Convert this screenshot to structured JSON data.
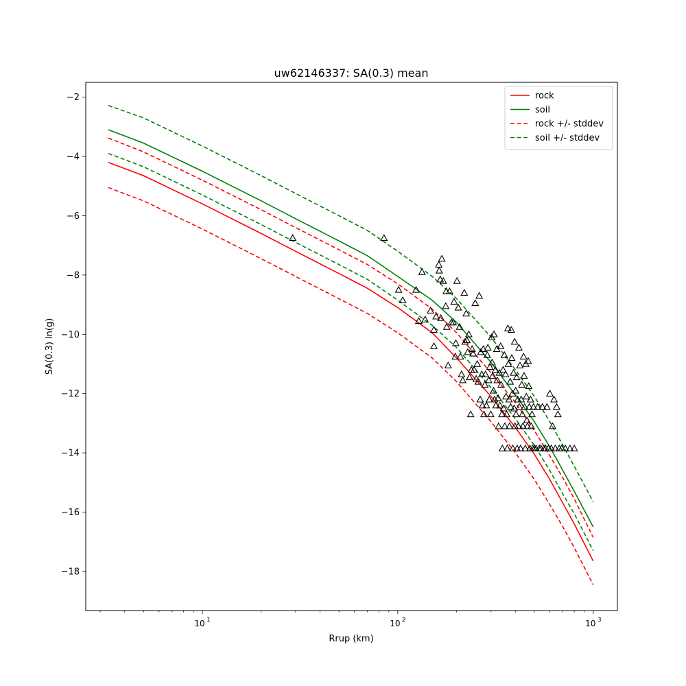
{
  "chart_data": {
    "type": "line",
    "title": "uw62146337: SA(0.3) mean",
    "xlabel": "Rrup (km)",
    "ylabel": "SA(0.3) ln(g)",
    "x_scale": "log",
    "xlim": [
      2.53,
      1330
    ],
    "ylim": [
      -19.32,
      -1.5
    ],
    "grid": false,
    "legend_position": "top-right",
    "xticks": [
      {
        "value": 10,
        "base": "10",
        "exp": "1"
      },
      {
        "value": 100,
        "base": "10",
        "exp": "2"
      },
      {
        "value": 1000,
        "base": "10",
        "exp": "3"
      }
    ],
    "yticks": [
      {
        "value": -2,
        "label": "−2"
      },
      {
        "value": -4,
        "label": "−4"
      },
      {
        "value": -6,
        "label": "−6"
      },
      {
        "value": -8,
        "label": "−8"
      },
      {
        "value": -10,
        "label": "−10"
      },
      {
        "value": -12,
        "label": "−12"
      },
      {
        "value": -14,
        "label": "−14"
      },
      {
        "value": -16,
        "label": "−16"
      },
      {
        "value": -18,
        "label": "−18"
      }
    ],
    "series": [
      {
        "name": "rock",
        "color": "#ff0000",
        "style": "solid",
        "x": [
          3.3,
          5,
          10,
          20,
          30,
          50,
          70,
          100,
          150,
          200,
          300,
          400,
          500,
          600,
          700,
          800,
          1000
        ],
        "y": [
          -4.2,
          -4.65,
          -5.6,
          -6.6,
          -7.2,
          -7.95,
          -8.45,
          -9.1,
          -9.95,
          -10.8,
          -12.1,
          -13.15,
          -14.05,
          -14.9,
          -15.7,
          -16.4,
          -17.65
        ]
      },
      {
        "name": "soil",
        "color": "#008000",
        "style": "solid",
        "x": [
          3.3,
          5,
          10,
          20,
          30,
          50,
          70,
          100,
          150,
          200,
          300,
          400,
          500,
          600,
          700,
          800,
          1000
        ],
        "y": [
          -3.1,
          -3.55,
          -4.5,
          -5.5,
          -6.1,
          -6.85,
          -7.35,
          -8.05,
          -8.85,
          -9.6,
          -10.95,
          -12.05,
          -12.95,
          -13.8,
          -14.6,
          -15.3,
          -16.5
        ]
      },
      {
        "name": "rock +/- stddev",
        "color": "#ff0000",
        "style": "dashed",
        "x": [
          3.3,
          5,
          10,
          20,
          30,
          50,
          70,
          100,
          150,
          200,
          300,
          400,
          500,
          600,
          700,
          800,
          1000
        ],
        "y": [
          -3.38,
          -3.85,
          -4.8,
          -5.8,
          -6.4,
          -7.15,
          -7.65,
          -8.3,
          -9.15,
          -9.95,
          -11.3,
          -12.3,
          -13.25,
          -14.1,
          -14.85,
          -15.55,
          -16.85
        ]
      },
      {
        "name": "",
        "color": "#ff0000",
        "style": "dashed",
        "x": [
          3.3,
          5,
          10,
          20,
          30,
          50,
          70,
          100,
          150,
          200,
          300,
          400,
          500,
          600,
          700,
          800,
          1000
        ],
        "y": [
          -5.05,
          -5.5,
          -6.45,
          -7.45,
          -8.05,
          -8.8,
          -9.3,
          -9.95,
          -10.8,
          -11.6,
          -12.95,
          -14.0,
          -14.9,
          -15.75,
          -16.5,
          -17.2,
          -18.45
        ]
      },
      {
        "name": "soil +/- stddev",
        "color": "#008000",
        "style": "dashed",
        "x": [
          3.3,
          5,
          10,
          20,
          30,
          50,
          70,
          100,
          150,
          200,
          300,
          400,
          500,
          600,
          700,
          800,
          1000
        ],
        "y": [
          -2.28,
          -2.7,
          -3.65,
          -4.65,
          -5.25,
          -6.0,
          -6.5,
          -7.2,
          -8.05,
          -8.8,
          -10.1,
          -11.2,
          -12.1,
          -12.95,
          -13.75,
          -14.45,
          -15.65
        ]
      },
      {
        "name": "",
        "color": "#008000",
        "style": "dashed",
        "x": [
          3.3,
          5,
          10,
          20,
          30,
          50,
          70,
          100,
          150,
          200,
          300,
          400,
          500,
          600,
          700,
          800,
          1000
        ],
        "y": [
          -3.9,
          -4.35,
          -5.3,
          -6.3,
          -6.9,
          -7.65,
          -8.15,
          -8.85,
          -9.7,
          -10.45,
          -11.8,
          -12.85,
          -13.75,
          -14.6,
          -15.4,
          -16.05,
          -17.3
        ]
      }
    ],
    "observations": {
      "marker": "triangle",
      "color": "#000000",
      "points": [
        [
          29,
          -6.75
        ],
        [
          85,
          -6.75
        ],
        [
          101,
          -8.5
        ],
        [
          106,
          -8.85
        ],
        [
          124,
          -8.5
        ],
        [
          133,
          -7.9
        ],
        [
          128,
          -9.55
        ],
        [
          138,
          -9.5
        ],
        [
          147,
          -9.2
        ],
        [
          153,
          -9.85
        ],
        [
          153,
          -10.4
        ],
        [
          157,
          -9.4
        ],
        [
          162,
          -7.65
        ],
        [
          163,
          -7.85
        ],
        [
          165,
          -8.15
        ],
        [
          166,
          -9.45
        ],
        [
          168,
          -7.45
        ],
        [
          171,
          -8.2
        ],
        [
          176,
          -9.05
        ],
        [
          177,
          -8.55
        ],
        [
          178,
          -9.75
        ],
        [
          181,
          -11.05
        ],
        [
          184,
          -8.55
        ],
        [
          188,
          -9.6
        ],
        [
          192,
          -9.6
        ],
        [
          194,
          -8.9
        ],
        [
          197,
          -10.75
        ],
        [
          198,
          -10.3
        ],
        [
          201,
          -8.2
        ],
        [
          204,
          -9.1
        ],
        [
          207,
          -9.75
        ],
        [
          209,
          -10.75
        ],
        [
          212,
          -11.35
        ],
        [
          215,
          -11.55
        ],
        [
          219,
          -8.6
        ],
        [
          221,
          -10.25
        ],
        [
          224,
          -9.3
        ],
        [
          226,
          -10.2
        ],
        [
          228,
          -10.6
        ],
        [
          231,
          -10.0
        ],
        [
          233,
          -11.45
        ],
        [
          236,
          -12.7
        ],
        [
          238,
          -11.2
        ],
        [
          240,
          -10.5
        ],
        [
          243,
          -10.65
        ],
        [
          246,
          -11.2
        ],
        [
          249,
          -8.95
        ],
        [
          252,
          -11.5
        ],
        [
          255,
          -11.0
        ],
        [
          258,
          -11.6
        ],
        [
          261,
          -8.7
        ],
        [
          264,
          -12.2
        ],
        [
          266,
          -10.6
        ],
        [
          269,
          -11.35
        ],
        [
          271,
          -12.4
        ],
        [
          274,
          -10.5
        ],
        [
          276,
          -12.7
        ],
        [
          279,
          -11.7
        ],
        [
          281,
          -11.35
        ],
        [
          284,
          -12.4
        ],
        [
          287,
          -10.7
        ],
        [
          289,
          -10.45
        ],
        [
          292,
          -11.55
        ],
        [
          294,
          -12.2
        ],
        [
          296,
          -11.1
        ],
        [
          299,
          -12.7
        ],
        [
          302,
          -10.1
        ],
        [
          304,
          -10.95
        ],
        [
          306,
          -11.4
        ],
        [
          309,
          -11.9
        ],
        [
          311,
          -10.0
        ],
        [
          313,
          -12.2
        ],
        [
          316,
          -11.2
        ],
        [
          318,
          -12.4
        ],
        [
          321,
          -10.5
        ],
        [
          323,
          -11.55
        ],
        [
          326,
          -12.15
        ],
        [
          328,
          -13.1
        ],
        [
          331,
          -11.3
        ],
        [
          333,
          -12.4
        ],
        [
          336,
          -10.4
        ],
        [
          338,
          -11.7
        ],
        [
          341,
          -12.7
        ],
        [
          343,
          -13.85
        ],
        [
          346,
          -11.2
        ],
        [
          348,
          -12.5
        ],
        [
          351,
          -10.7
        ],
        [
          353,
          -13.1
        ],
        [
          356,
          -11.35
        ],
        [
          358,
          -12.1
        ],
        [
          361,
          -12.7
        ],
        [
          363,
          -13.85
        ],
        [
          366,
          -9.8
        ],
        [
          368,
          -11.0
        ],
        [
          371,
          -12.2
        ],
        [
          373,
          -13.1
        ],
        [
          376,
          -11.6
        ],
        [
          378,
          -12.45
        ],
        [
          381,
          -9.85
        ],
        [
          383,
          -10.8
        ],
        [
          386,
          -12.0
        ],
        [
          388,
          -13.85
        ],
        [
          391,
          -11.3
        ],
        [
          394,
          -12.5
        ],
        [
          396,
          -10.25
        ],
        [
          398,
          -13.1
        ],
        [
          401,
          -11.9
        ],
        [
          403,
          -12.7
        ],
        [
          406,
          -11.45
        ],
        [
          408,
          -13.85
        ],
        [
          411,
          -12.2
        ],
        [
          414,
          -13.1
        ],
        [
          417,
          -10.45
        ],
        [
          419,
          -12.45
        ],
        [
          422,
          -11.05
        ],
        [
          425,
          -13.85
        ],
        [
          428,
          -12.2
        ],
        [
          431,
          -11.7
        ],
        [
          434,
          -12.7
        ],
        [
          437,
          -13.1
        ],
        [
          440,
          -10.75
        ],
        [
          443,
          -11.4
        ],
        [
          446,
          -12.45
        ],
        [
          449,
          -13.85
        ],
        [
          452,
          -11.0
        ],
        [
          455,
          -12.1
        ],
        [
          458,
          -12.9
        ],
        [
          461,
          -13.1
        ],
        [
          465,
          -10.9
        ],
        [
          468,
          -11.75
        ],
        [
          471,
          -12.45
        ],
        [
          474,
          -13.85
        ],
        [
          478,
          -12.2
        ],
        [
          482,
          -13.1
        ],
        [
          486,
          -12.7
        ],
        [
          490,
          -13.85
        ],
        [
          495,
          -12.45
        ],
        [
          500,
          -13.85
        ],
        [
          510,
          -13.85
        ],
        [
          520,
          -12.45
        ],
        [
          530,
          -13.85
        ],
        [
          540,
          -13.85
        ],
        [
          550,
          -12.45
        ],
        [
          560,
          -13.85
        ],
        [
          570,
          -13.85
        ],
        [
          580,
          -12.45
        ],
        [
          590,
          -13.85
        ],
        [
          600,
          -12.0
        ],
        [
          610,
          -13.85
        ],
        [
          620,
          -13.1
        ],
        [
          630,
          -12.2
        ],
        [
          640,
          -13.85
        ],
        [
          650,
          -12.45
        ],
        [
          660,
          -12.7
        ],
        [
          670,
          -13.85
        ],
        [
          690,
          -13.85
        ],
        [
          720,
          -13.85
        ],
        [
          760,
          -13.85
        ],
        [
          800,
          -13.85
        ]
      ]
    }
  }
}
